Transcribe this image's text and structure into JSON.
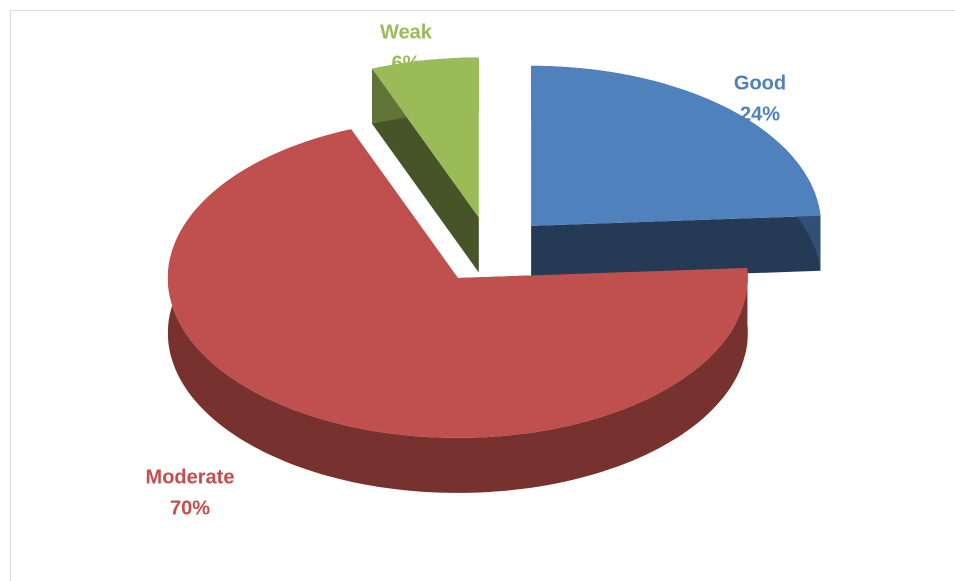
{
  "chart_data": {
    "type": "pie",
    "categories": [
      "Good",
      "Moderate",
      "Weak"
    ],
    "values": [
      24,
      70,
      6
    ],
    "value_labels": [
      "24%",
      "70%",
      "6%"
    ],
    "colors": [
      "#4f81bd",
      "#c0504d",
      "#9bbb59"
    ]
  }
}
